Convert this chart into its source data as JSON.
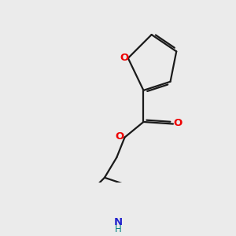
{
  "bg_color": "#ebebeb",
  "bond_color": "#1a1a1a",
  "o_color": "#ee0000",
  "n_color": "#2222cc",
  "h_color": "#008080",
  "line_width": 1.6,
  "figsize": [
    3.0,
    3.0
  ],
  "dpi": 100,
  "xlim": [
    0,
    10
  ],
  "ylim": [
    0,
    10
  ]
}
